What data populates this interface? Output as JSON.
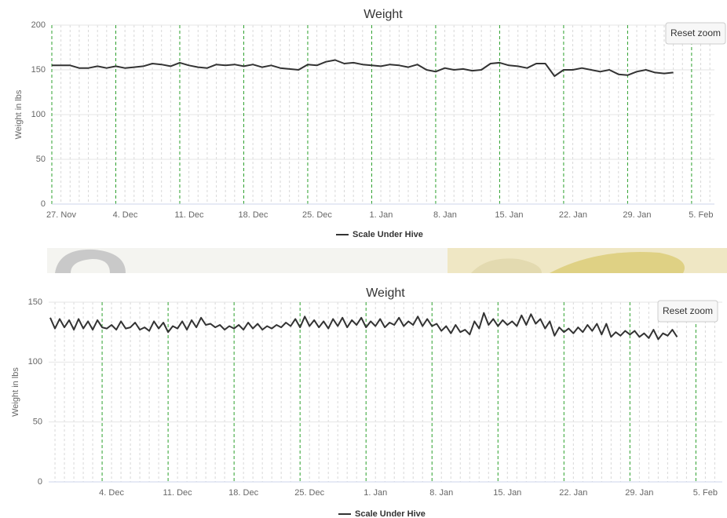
{
  "chart_data": [
    {
      "type": "line",
      "title": "Weight",
      "y_label": "Weight in lbs",
      "reset_button": "Reset zoom",
      "xlim": [
        0,
        72.5
      ],
      "xticks": [
        {
          "value": 0,
          "label": "27. Nov"
        },
        {
          "value": 7,
          "label": "4. Dec"
        },
        {
          "value": 14,
          "label": "11. Dec"
        },
        {
          "value": 21,
          "label": "18. Dec"
        },
        {
          "value": 28,
          "label": "25. Dec"
        },
        {
          "value": 35,
          "label": "1. Jan"
        },
        {
          "value": 42,
          "label": "8. Jan"
        },
        {
          "value": 49,
          "label": "15. Jan"
        },
        {
          "value": 56,
          "label": "22. Jan"
        },
        {
          "value": 63,
          "label": "29. Jan"
        },
        {
          "value": 70,
          "label": "5. Feb"
        }
      ],
      "minor_xticks": [
        1,
        2,
        3,
        4,
        5,
        6,
        8,
        9,
        10,
        11,
        12,
        13,
        15,
        16,
        17,
        18,
        19,
        20,
        22,
        23,
        24,
        25,
        26,
        27,
        29,
        30,
        31,
        32,
        33,
        34,
        36,
        37,
        38,
        39,
        40,
        41,
        43,
        44,
        45,
        46,
        47,
        48,
        50,
        51,
        52,
        53,
        54,
        55,
        57,
        58,
        59,
        60,
        61,
        62,
        64,
        65,
        66,
        67,
        68,
        69,
        71,
        72
      ],
      "ylim": [
        0,
        200
      ],
      "yticks": [
        0,
        50,
        100,
        150,
        200
      ],
      "grid": true,
      "x": [
        0,
        1,
        2,
        3,
        4,
        5,
        6,
        7,
        8,
        9,
        10,
        11,
        12,
        13,
        14,
        15,
        16,
        17,
        18,
        19,
        20,
        21,
        22,
        23,
        24,
        25,
        26,
        27,
        28,
        29,
        30,
        31,
        32,
        33,
        34,
        35,
        36,
        37,
        38,
        39,
        40,
        41,
        42,
        43,
        44,
        45,
        46,
        47,
        48,
        49,
        50,
        51,
        52,
        53,
        54,
        55,
        56,
        57,
        58,
        59,
        60,
        61,
        62,
        63,
        64,
        65,
        66,
        67,
        68
      ],
      "series": [
        {
          "name": "Scale Under Hive",
          "color": "#333333",
          "values": [
            155,
            155,
            155,
            152,
            152,
            154,
            152,
            154,
            152,
            153,
            154,
            157,
            156,
            154,
            158,
            155,
            153,
            152,
            156,
            155,
            156,
            154,
            156,
            153,
            155,
            152,
            151,
            150,
            156,
            155,
            159,
            161,
            157,
            158,
            156,
            155,
            154,
            156,
            155,
            153,
            156,
            150,
            148,
            152,
            150,
            151,
            149,
            150,
            157,
            158,
            155,
            154,
            152,
            157,
            157,
            143,
            150,
            150,
            152,
            150,
            148,
            150,
            145,
            144,
            148,
            150,
            147,
            146,
            147
          ]
        }
      ]
    },
    {
      "type": "line",
      "title": "Weight",
      "y_label": "Weight in lbs",
      "reset_button": "Reset zoom",
      "xlim": [
        1.33,
        72.8
      ],
      "xticks": [
        {
          "value": 7,
          "label": "4. Dec"
        },
        {
          "value": 14,
          "label": "11. Dec"
        },
        {
          "value": 21,
          "label": "18. Dec"
        },
        {
          "value": 28,
          "label": "25. Dec"
        },
        {
          "value": 35,
          "label": "1. Jan"
        },
        {
          "value": 42,
          "label": "8. Jan"
        },
        {
          "value": 49,
          "label": "15. Jan"
        },
        {
          "value": 56,
          "label": "22. Jan"
        },
        {
          "value": 63,
          "label": "29. Jan"
        },
        {
          "value": 70,
          "label": "5. Feb"
        }
      ],
      "minor_xticks": [
        2,
        3,
        4,
        5,
        6,
        8,
        9,
        10,
        11,
        12,
        13,
        15,
        16,
        17,
        18,
        19,
        20,
        22,
        23,
        24,
        25,
        26,
        27,
        29,
        30,
        31,
        32,
        33,
        34,
        36,
        37,
        38,
        39,
        40,
        41,
        43,
        44,
        45,
        46,
        47,
        48,
        50,
        51,
        52,
        53,
        54,
        55,
        57,
        58,
        59,
        60,
        61,
        62,
        64,
        65,
        66,
        67,
        68,
        69,
        71,
        72
      ],
      "ylim": [
        0,
        150
      ],
      "yticks": [
        0,
        50,
        100,
        150
      ],
      "grid": true,
      "x": [
        1.5,
        2,
        2.5,
        3,
        3.5,
        4,
        4.5,
        5,
        5.5,
        6,
        6.5,
        7,
        7.5,
        8,
        8.5,
        9,
        9.5,
        10,
        10.5,
        11,
        11.5,
        12,
        12.5,
        13,
        13.5,
        14,
        14.5,
        15,
        15.5,
        16,
        16.5,
        17,
        17.5,
        18,
        18.5,
        19,
        19.5,
        20,
        20.5,
        21,
        21.5,
        22,
        22.5,
        23,
        23.5,
        24,
        24.5,
        25,
        25.5,
        26,
        26.5,
        27,
        27.5,
        28,
        28.5,
        29,
        29.5,
        30,
        30.5,
        31,
        31.5,
        32,
        32.5,
        33,
        33.5,
        34,
        34.5,
        35,
        35.5,
        36,
        36.5,
        37,
        37.5,
        38,
        38.5,
        39,
        39.5,
        40,
        40.5,
        41,
        41.5,
        42,
        42.5,
        43,
        43.5,
        44,
        44.5,
        45,
        45.5,
        46,
        46.5,
        47,
        47.5,
        48,
        48.5,
        49,
        49.5,
        50,
        50.5,
        51,
        51.5,
        52,
        52.5,
        53,
        53.5,
        54,
        54.5,
        55,
        55.5,
        56,
        56.5,
        57,
        57.5,
        58,
        58.5,
        59,
        59.5,
        60,
        60.5,
        61,
        61.5,
        62,
        62.5,
        63,
        63.5,
        64,
        64.5,
        65,
        65.5,
        66,
        66.5,
        67,
        67.5,
        68
      ],
      "series": [
        {
          "name": "Scale Under Hive",
          "color": "#333333",
          "values": [
            137,
            128,
            136,
            129,
            135,
            127,
            136,
            128,
            134,
            127,
            135,
            129,
            128,
            131,
            127,
            134,
            128,
            129,
            133,
            127,
            129,
            126,
            134,
            128,
            133,
            125,
            130,
            128,
            134,
            127,
            135,
            129,
            137,
            131,
            132,
            129,
            131,
            127,
            130,
            128,
            131,
            127,
            133,
            128,
            132,
            127,
            130,
            128,
            131,
            129,
            133,
            130,
            136,
            129,
            138,
            130,
            135,
            129,
            134,
            128,
            136,
            130,
            137,
            129,
            135,
            131,
            137,
            129,
            134,
            130,
            136,
            129,
            133,
            131,
            137,
            130,
            134,
            131,
            138,
            130,
            136,
            130,
            132,
            126,
            130,
            124,
            131,
            125,
            127,
            123,
            134,
            128,
            141,
            131,
            136,
            130,
            135,
            131,
            134,
            130,
            139,
            131,
            140,
            132,
            136,
            128,
            134,
            122,
            129,
            125,
            128,
            124,
            129,
            125,
            131,
            126,
            132,
            123,
            132,
            121,
            125,
            122,
            126,
            123,
            126,
            121,
            124,
            120,
            127,
            119,
            124,
            122,
            127,
            121
          ]
        }
      ]
    }
  ]
}
